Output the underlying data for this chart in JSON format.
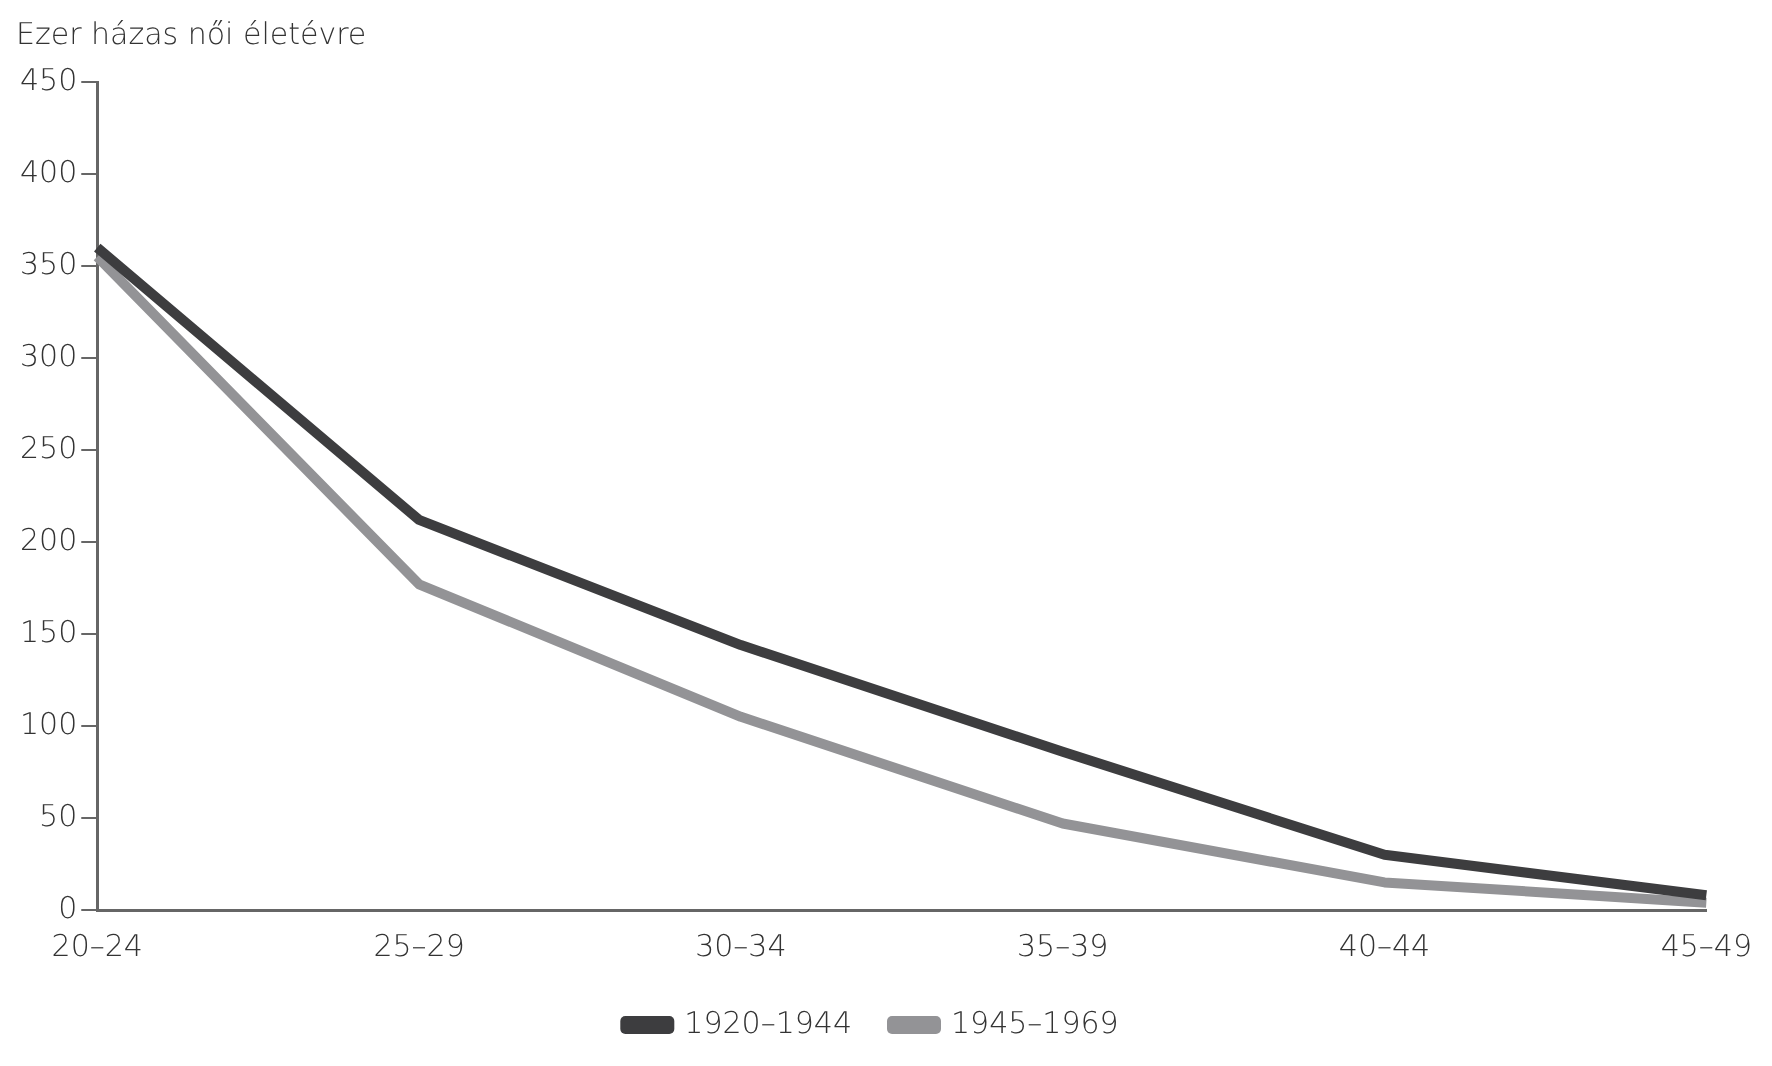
{
  "chart_data": {
    "type": "line",
    "ylabel": "Ezer házas női életévre",
    "categories": [
      "20–24",
      "25–29",
      "30–34",
      "35–39",
      "40–44",
      "45–49"
    ],
    "series": [
      {
        "name": "1920–1944",
        "color": "#3d3d3f",
        "values": [
          360,
          212,
          144,
          86,
          30,
          8
        ]
      },
      {
        "name": "1945–1969",
        "color": "#939396",
        "values": [
          355,
          177,
          105,
          47,
          15,
          4
        ]
      }
    ],
    "ylim": [
      0,
      450
    ],
    "yticks": [
      0,
      50,
      100,
      150,
      200,
      250,
      300,
      350,
      400,
      450
    ],
    "grid": false,
    "legend": "bottom",
    "marker": "none",
    "line_style": "solid"
  }
}
